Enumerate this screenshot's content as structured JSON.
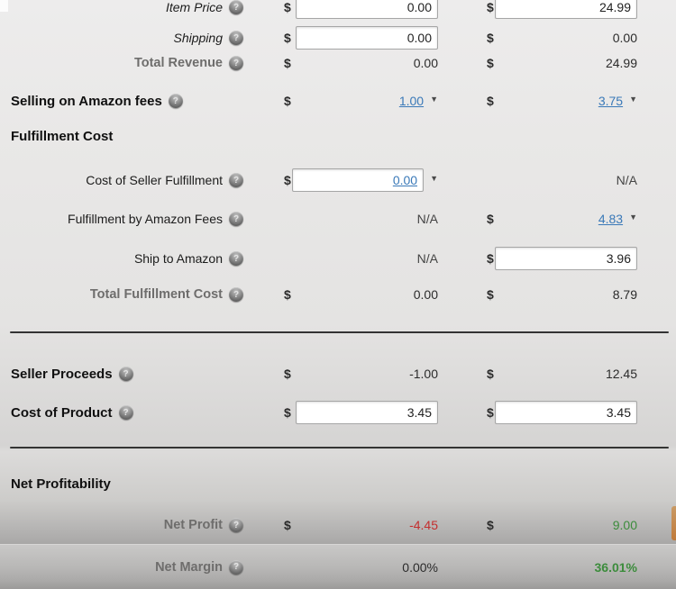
{
  "currency_symbol": "$",
  "icons": {
    "help": "?",
    "dropdown": "▼"
  },
  "colors": {
    "link_blue": "#3a79b8",
    "negative_red": "#c42e2e",
    "positive_green": "#3c8c3c",
    "divider": "#333333"
  },
  "sections": {
    "fulfillment_cost_header": "Fulfillment Cost",
    "net_profitability_header": "Net Profitability"
  },
  "rows": {
    "item_price": {
      "label": "Item Price",
      "col1": "0.00",
      "col2": "24.99"
    },
    "shipping": {
      "label": "Shipping",
      "col1": "0.00",
      "col2": "0.00"
    },
    "total_revenue": {
      "label": "Total Revenue",
      "col1": "0.00",
      "col2": "24.99"
    },
    "selling_on_amazon_fees": {
      "label": "Selling on Amazon fees",
      "col1": "1.00",
      "col2": "3.75"
    },
    "cost_of_seller_fulfillment": {
      "label": "Cost of Seller Fulfillment",
      "col1": "0.00",
      "col2": "N/A"
    },
    "fulfillment_by_amazon_fees": {
      "label": "Fulfillment by Amazon Fees",
      "col1": "N/A",
      "col2": "4.83"
    },
    "ship_to_amazon": {
      "label": "Ship to Amazon",
      "col1": "N/A",
      "col2": "3.96"
    },
    "total_fulfillment_cost": {
      "label": "Total Fulfillment Cost",
      "col1": "0.00",
      "col2": "8.79"
    },
    "seller_proceeds": {
      "label": "Seller Proceeds",
      "col1": "-1.00",
      "col2": "12.45"
    },
    "cost_of_product": {
      "label": "Cost of Product",
      "col1": "3.45",
      "col2": "3.45"
    },
    "net_profit": {
      "label": "Net Profit",
      "col1": "-4.45",
      "col2": "9.00"
    },
    "net_margin": {
      "label": "Net Margin",
      "col1": "0.00%",
      "col2": "36.01%"
    }
  }
}
